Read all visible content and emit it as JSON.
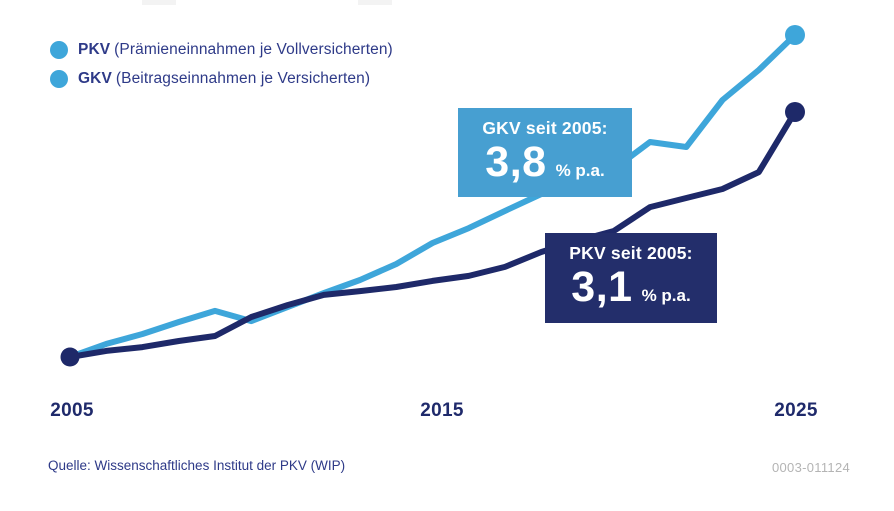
{
  "legend": {
    "items": [
      {
        "abbr": "PKV",
        "desc": "(Prämieneinnahmen je Vollversicherten)",
        "color": "#1e2969"
      },
      {
        "abbr": "GKV",
        "desc": "(Beitragseinnahmen je Versicherten)",
        "color": "#3ea6da"
      }
    ]
  },
  "callouts": {
    "gkv": {
      "title": "GKV seit 2005:",
      "value": "3,8",
      "unit": "% p.a.",
      "bg": "#479fd1"
    },
    "pkv": {
      "title": "PKV seit 2005:",
      "value": "3,1",
      "unit": "% p.a.",
      "bg": "#232e6b"
    }
  },
  "axis": {
    "ticks": [
      "2005",
      "2015",
      "2025"
    ]
  },
  "footer": {
    "source": "Quelle: Wissenschaftliches Institut der PKV (WIP)",
    "code": "0003-011124"
  },
  "chart_data": {
    "type": "line",
    "x": [
      2005,
      2006,
      2007,
      2008,
      2009,
      2010,
      2011,
      2012,
      2013,
      2014,
      2015,
      2016,
      2017,
      2018,
      2019,
      2020,
      2021,
      2022,
      2023,
      2024,
      2025
    ],
    "x_ticks": [
      "2005",
      "2015",
      "2025"
    ],
    "value_basis": "index, 2005 = 100 (estimated from line positions; no y-axis shown)",
    "ylim": [
      95,
      215
    ],
    "grid": false,
    "legend_position": "top-left",
    "series": [
      {
        "name": "GKV (Beitragseinnahmen je Versicherten)",
        "color": "#3ea6da",
        "values": [
          100,
          104.5,
          107.9,
          112.0,
          115.8,
          112.3,
          117.1,
          121.9,
          126.4,
          131.9,
          139.1,
          144.2,
          150.1,
          155.9,
          161.0,
          164.4,
          173.7,
          172.0,
          188.1,
          198.4,
          210.4
        ],
        "growth_label": "GKV seit 2005: 3,8 % p.a."
      },
      {
        "name": "PKV (Prämieneinnahmen je Vollversicherten)",
        "color": "#1e2969",
        "values": [
          100,
          102.1,
          103.4,
          105.5,
          107.2,
          113.7,
          117.8,
          121.3,
          122.6,
          124.0,
          126.1,
          127.8,
          130.9,
          136.0,
          139.8,
          143.2,
          151.4,
          154.5,
          157.6,
          163.4,
          184.0
        ],
        "growth_label": "PKV seit 2005: 3,1 % p.a."
      }
    ]
  }
}
